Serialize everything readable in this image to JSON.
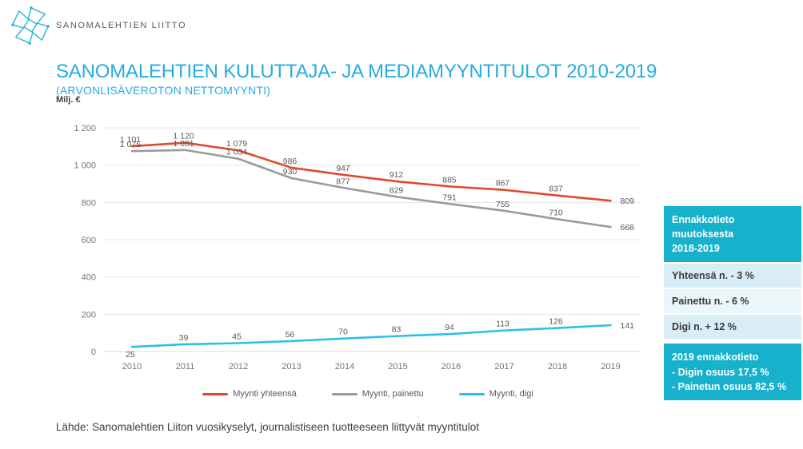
{
  "brand": {
    "name": "SANOMALEHTIEN LIITTO"
  },
  "title": "SANOMALEHTIEN KULUTTAJA- JA MEDIAMYYNTITULOT 2010-2019",
  "subtitle": "(ARVONLISÄVEROTON NETTOMYYNTI)",
  "chart_data": {
    "type": "line",
    "ylabel": "Milj. €",
    "categories": [
      "2010",
      "2011",
      "2012",
      "2013",
      "2014",
      "2015",
      "2016",
      "2017",
      "2018",
      "2019"
    ],
    "series": [
      {
        "name": "Myynti yhteensä",
        "color": "#e0492f",
        "values": [
          1101,
          1120,
          1079,
          986,
          947,
          912,
          885,
          867,
          837,
          809
        ]
      },
      {
        "name": "Myynti, painettu",
        "color": "#9b9b9b",
        "values": [
          1075,
          1081,
          1034,
          930,
          877,
          829,
          791,
          755,
          710,
          668
        ]
      },
      {
        "name": "Myynti, digi",
        "color": "#29c1e8",
        "values": [
          25,
          39,
          45,
          56,
          70,
          83,
          94,
          113,
          126,
          141
        ]
      }
    ],
    "ylim": [
      0,
      1200
    ],
    "ytick_step": 200,
    "grid": true,
    "legend_position": "bottom"
  },
  "side_panel": {
    "box1_lines": [
      "Ennakkotieto",
      "muutoksesta",
      "2018-2019"
    ],
    "rows": [
      {
        "label": "Yhteensä n.  - 3 %"
      },
      {
        "label": "Painettu n. - 6 %"
      },
      {
        "label": "Digi  n. + 12 %"
      }
    ],
    "box2_lines": [
      "2019 ennakkotieto",
      "- Digin osuus 17,5 %",
      "- Painetun osuus 82,5 %"
    ]
  },
  "footer": "Lähde: Sanomalehtien Liiton vuosikyselyt, journalistiseen tuotteeseen liittyvät myyntitulot",
  "colors": {
    "accent_cyan": "#29abe2",
    "logo_cyan": "#2bb7d8",
    "teal_box": "#17b1cb",
    "row_light": "#d8edf5",
    "row_lighter": "#eaf6fa",
    "grid_line": "#e5e5e5",
    "axis_text": "#757575",
    "data_label": "#595959"
  }
}
